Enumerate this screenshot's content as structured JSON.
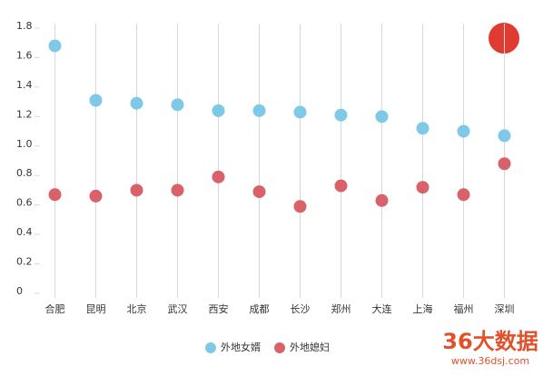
{
  "chart_data": {
    "type": "dot",
    "categories": [
      "合肥",
      "昆明",
      "北京",
      "武汉",
      "西安",
      "成都",
      "长沙",
      "郑州",
      "大连",
      "上海",
      "福州",
      "深圳"
    ],
    "series": [
      {
        "name": "外地女婿",
        "color": "#7ec8e8",
        "values": [
          1.68,
          1.31,
          1.29,
          1.28,
          1.24,
          1.24,
          1.23,
          1.21,
          1.2,
          1.12,
          1.1,
          1.07
        ]
      },
      {
        "name": "外地媳妇",
        "color": "#d9626a",
        "values": [
          0.67,
          0.66,
          0.7,
          0.7,
          0.79,
          0.69,
          0.59,
          0.73,
          0.63,
          0.72,
          0.67,
          0.88
        ]
      }
    ],
    "ylim": [
      0,
      1.8
    ],
    "yticks": [
      0,
      0.2,
      0.4,
      0.6,
      0.8,
      {
        "value": 1,
        "label": "1.0"
      },
      1.2,
      1.4,
      1.6,
      1.8
    ],
    "grid": true,
    "legend": "bottom"
  },
  "watermark": {
    "brand": "36大数据",
    "url": "www.36dsj.com"
  }
}
